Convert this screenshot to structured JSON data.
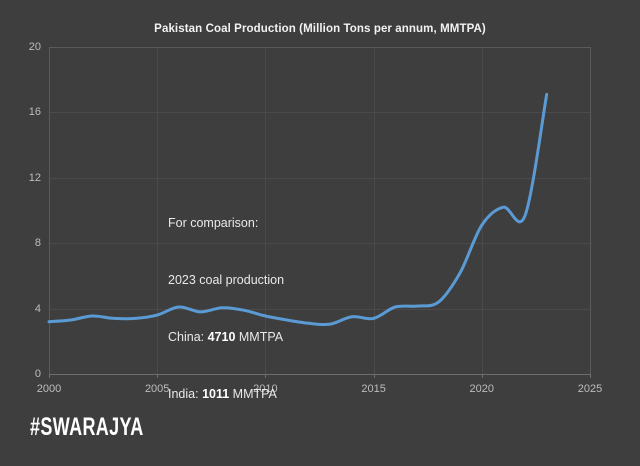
{
  "title": "Pakistan Coal Production (Million Tons per annum, MMTPA)",
  "watermark": "#SWARAJYA",
  "annotation": {
    "line1": "For comparison:",
    "line2": "2023 coal production",
    "china_label": "China: ",
    "china_value": "4710",
    "china_unit": " MMTPA",
    "india_label": "India: ",
    "india_value": "1011",
    "india_unit": " MMTPA"
  },
  "chart_data": {
    "type": "line",
    "title": "Pakistan Coal Production (Million Tons per annum, MMTPA)",
    "x": [
      2000,
      2001,
      2002,
      2003,
      2004,
      2005,
      2006,
      2007,
      2008,
      2009,
      2010,
      2011,
      2012,
      2013,
      2014,
      2015,
      2016,
      2017,
      2018,
      2019,
      2020,
      2021,
      2022,
      2023
    ],
    "series": [
      {
        "name": "Pakistan coal production (MMTPA)",
        "values": [
          3.2,
          3.3,
          3.55,
          3.4,
          3.4,
          3.6,
          4.1,
          3.8,
          4.05,
          3.9,
          3.55,
          3.3,
          3.1,
          3.05,
          3.5,
          3.4,
          4.1,
          4.15,
          4.4,
          6.2,
          9.1,
          10.2,
          9.7,
          17.1
        ],
        "color": "#5b9bd5"
      }
    ],
    "xlabel": "",
    "ylabel": "",
    "xlim": [
      2000,
      2025
    ],
    "ylim": [
      0,
      20
    ],
    "x_ticks": [
      2000,
      2005,
      2010,
      2015,
      2020,
      2025
    ],
    "y_ticks": [
      0,
      4,
      8,
      12,
      16,
      20
    ],
    "grid": true,
    "legend": false,
    "smooth": true,
    "annotations": [
      "For comparison:",
      "2023 coal production",
      "China: 4710 MMTPA",
      "India: 1011 MMTPA"
    ]
  },
  "colors": {
    "background": "#3e3e3e",
    "grid": "#4a4a4a",
    "border": "#5a5a5a",
    "axis": "#6e6e6e",
    "tick_label": "#bdbdbd",
    "title": "#f2f2f2",
    "annotation_text": "#e9e9e9",
    "line": "#5b9bd5",
    "watermark": "#ffffff"
  }
}
